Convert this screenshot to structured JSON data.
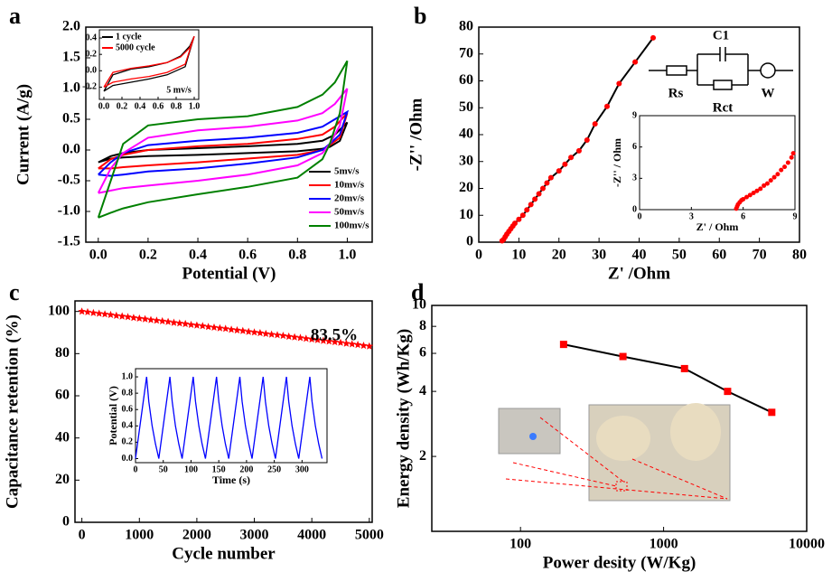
{
  "chart_data": [
    {
      "type": "line",
      "panel": "a",
      "xlabel": "Potential (V)",
      "ylabel": "Current (A/g)",
      "x": [
        0,
        0.05,
        0.1,
        0.2,
        0.4,
        0.6,
        0.8,
        0.9,
        0.95,
        1,
        1,
        0.97,
        0.93,
        0.9,
        0.8,
        0.6,
        0.4,
        0.2,
        0.1,
        0.05,
        0
      ],
      "series": [
        {
          "name": "5mv/s",
          "color": "#000000",
          "values": [
            -0.2,
            -0.1,
            -0.05,
            0,
            0.03,
            0.06,
            0.1,
            0.15,
            0.25,
            0.45,
            0.45,
            0.15,
            0.05,
            0.02,
            -0.02,
            -0.05,
            -0.08,
            -0.1,
            -0.12,
            -0.14,
            -0.2
          ]
        },
        {
          "name": "10mv/s",
          "color": "#ff0000",
          "values": [
            -0.3,
            -0.15,
            -0.08,
            0,
            0.06,
            0.1,
            0.18,
            0.25,
            0.38,
            0.6,
            0.6,
            0.2,
            0.08,
            0,
            -0.08,
            -0.14,
            -0.2,
            -0.25,
            -0.28,
            -0.3,
            -0.3
          ]
        },
        {
          "name": "20mv/s",
          "color": "#0000ff",
          "values": [
            -0.4,
            -0.2,
            -0.05,
            0.08,
            0.15,
            0.2,
            0.28,
            0.38,
            0.5,
            0.62,
            0.62,
            0.25,
            0.1,
            0,
            -0.12,
            -0.22,
            -0.3,
            -0.35,
            -0.4,
            -0.42,
            -0.4
          ]
        },
        {
          "name": "50mv/s",
          "color": "#ff00ff",
          "values": [
            -0.7,
            -0.3,
            -0.05,
            0.2,
            0.32,
            0.38,
            0.48,
            0.6,
            0.75,
            1,
            1,
            0.4,
            0.1,
            -0.05,
            -0.25,
            -0.4,
            -0.5,
            -0.58,
            -0.62,
            -0.66,
            -0.7
          ]
        },
        {
          "name": "100mv/s",
          "color": "#008000",
          "values": [
            -1.1,
            -0.5,
            0.1,
            0.4,
            0.5,
            0.55,
            0.7,
            0.9,
            1.1,
            1.45,
            1.45,
            0.6,
            0.1,
            -0.15,
            -0.45,
            -0.6,
            -0.72,
            -0.85,
            -0.95,
            -1.02,
            -1.1
          ]
        }
      ],
      "xlim": [
        -0.05,
        1.1
      ],
      "xticks": [
        {
          "value": 0,
          "label": "0.0"
        },
        0.2,
        0.4,
        0.6,
        0.8,
        {
          "value": 1,
          "label": "1.0"
        }
      ],
      "ylim": [
        -1.5,
        2
      ],
      "yticks": [
        -1.5,
        {
          "value": -1,
          "label": "-1.0"
        },
        -0.5,
        {
          "value": 0,
          "label": "0.0"
        },
        0.5,
        {
          "value": 1,
          "label": "1.0"
        },
        1.5,
        {
          "value": 2,
          "label": "2.0"
        }
      ],
      "legend": "lower right"
    },
    {
      "type": "line",
      "x": [
        0,
        0.1,
        0.3,
        0.5,
        0.7,
        0.85,
        0.95,
        1,
        0.9,
        0.7,
        0.5,
        0.3,
        0.1,
        0
      ],
      "series": [
        {
          "name": "1 cycle",
          "color": "#000000",
          "values": [
            -0.25,
            -0.05,
            0.02,
            0.05,
            0.1,
            0.18,
            0.3,
            0.42,
            0.05,
            -0.05,
            -0.1,
            -0.14,
            -0.18,
            -0.25
          ]
        },
        {
          "name": "5000 cycle",
          "color": "#ff0000",
          "values": [
            -0.2,
            -0.02,
            0.03,
            0.06,
            0.1,
            0.17,
            0.28,
            0.42,
            0.08,
            -0.02,
            -0.07,
            -0.1,
            -0.14,
            -0.2
          ]
        }
      ],
      "xlim": [
        -0.05,
        1.05
      ],
      "xticks": [
        {
          "value": 0,
          "label": "0.0"
        },
        0.2,
        0.4,
        0.6,
        0.8,
        {
          "value": 1,
          "label": "1.0"
        }
      ],
      "ylim": [
        -0.35,
        0.5
      ],
      "yticks": [
        -0.2,
        {
          "value": 0,
          "label": "0.0"
        },
        0.2,
        0.4
      ],
      "legend": "upper left",
      "annotations": [
        "5 mv/s"
      ]
    },
    {
      "type": "scatter",
      "panel": "b",
      "xlabel": "Z' /Ohm",
      "ylabel": "-Z'' /Ohm",
      "x": [
        5.8,
        6.2,
        6.6,
        7,
        7.5,
        8,
        8.5,
        9,
        10,
        11,
        12,
        13,
        14,
        15,
        16,
        17,
        18,
        20,
        21.5,
        23,
        25,
        27,
        29,
        32,
        35,
        39,
        43.5
      ],
      "series": [
        {
          "color": "#ff0000",
          "line_color": "#000000",
          "values": [
            0.5,
            1,
            2,
            3,
            4,
            5,
            6,
            7,
            8.5,
            10,
            12,
            14,
            16,
            18,
            20,
            22,
            24,
            26.5,
            29,
            31.5,
            34,
            38,
            44,
            50.5,
            59,
            67,
            76
          ]
        }
      ],
      "xlim": [
        0,
        80
      ],
      "xticks": [
        0,
        10,
        20,
        30,
        40,
        50,
        60,
        70,
        80
      ],
      "ylim": [
        0,
        80
      ],
      "yticks": [
        0,
        10,
        20,
        30,
        40,
        50,
        60,
        70,
        80
      ],
      "annotations": [
        "C1",
        "Rs",
        "W",
        "Rct"
      ]
    },
    {
      "type": "scatter",
      "xlabel": "Z' / Ohm",
      "ylabel": "-Z'' / Ohm",
      "x": [
        5.6,
        5.65,
        5.7,
        5.8,
        5.9,
        6,
        6.2,
        6.4,
        6.6,
        6.8,
        7,
        7.2,
        7.4,
        7.6,
        7.8,
        8,
        8.2,
        8.4,
        8.6,
        8.8,
        8.9
      ],
      "series": [
        {
          "color": "#ff0000",
          "values": [
            0.1,
            0.3,
            0.5,
            0.7,
            0.9,
            1,
            1.2,
            1.4,
            1.6,
            1.8,
            2,
            2.3,
            2.5,
            2.8,
            3.1,
            3.4,
            3.8,
            4.1,
            4.5,
            5,
            5.4
          ]
        }
      ],
      "xlim": [
        0,
        9
      ],
      "xticks": [
        0,
        3,
        6,
        9
      ],
      "ylim": [
        0,
        9
      ],
      "yticks": [
        0,
        3,
        6,
        9
      ]
    },
    {
      "type": "scatter",
      "panel": "c",
      "xlabel": "Cycle number",
      "ylabel": "Capacitance retention (%)",
      "marker": "star",
      "x": [
        0,
        100,
        200,
        300,
        400,
        500,
        600,
        700,
        800,
        900,
        1000,
        1100,
        1200,
        1300,
        1400,
        1500,
        1600,
        1700,
        1800,
        1900,
        2000,
        2100,
        2200,
        2300,
        2400,
        2500,
        2600,
        2700,
        2800,
        2900,
        3000,
        3100,
        3200,
        3300,
        3400,
        3500,
        3600,
        3700,
        3800,
        3900,
        4000,
        4100,
        4200,
        4300,
        4400,
        4500,
        4600,
        4700,
        4800,
        4900,
        5000
      ],
      "series": [
        {
          "color": "#ff0000",
          "values": [
            100,
            99.7,
            99.3,
            99,
            98.7,
            98.4,
            98,
            97.7,
            97.4,
            97,
            96.7,
            96.4,
            96,
            95.7,
            95.4,
            95.1,
            94.7,
            94.4,
            94.1,
            93.7,
            93.4,
            93.1,
            92.7,
            92.4,
            92.1,
            91.8,
            91.4,
            91.1,
            90.8,
            90.4,
            90.1,
            89.8,
            89.4,
            89.1,
            88.8,
            88.5,
            88.1,
            87.8,
            87.5,
            87.1,
            86.8,
            86.5,
            86.1,
            85.8,
            85.5,
            85.2,
            84.8,
            84.5,
            84.2,
            83.8,
            83.5
          ]
        }
      ],
      "xlim": [
        -120,
        5050
      ],
      "xticks": [
        0,
        1000,
        2000,
        3000,
        4000,
        5000
      ],
      "ylim": [
        0,
        105
      ],
      "yticks": [
        0,
        20,
        40,
        60,
        80,
        100
      ],
      "annotations": [
        "83.5%"
      ],
      "annotation_color": "#ff0000"
    },
    {
      "type": "line",
      "xlabel": "Time (s)",
      "ylabel": "Potential (V)",
      "x": [
        0,
        20,
        24,
        30,
        36,
        42,
        62,
        66,
        72,
        78,
        84,
        104,
        108,
        114,
        120,
        126,
        146,
        150,
        156,
        162,
        168,
        188,
        192,
        198,
        204,
        210,
        230,
        234,
        240,
        246,
        252,
        272,
        276,
        282,
        288,
        294,
        314,
        318,
        324,
        330,
        336
      ],
      "series": [
        {
          "color": "#0000ff",
          "values": [
            0,
            1,
            0.7,
            0.4,
            0.18,
            0,
            1,
            0.7,
            0.4,
            0.18,
            0,
            1,
            0.7,
            0.4,
            0.18,
            0,
            1,
            0.7,
            0.4,
            0.18,
            0,
            1,
            0.7,
            0.4,
            0.18,
            0,
            1,
            0.7,
            0.4,
            0.18,
            0,
            1,
            0.7,
            0.4,
            0.18,
            0,
            1,
            0.7,
            0.4,
            0.18,
            0
          ]
        }
      ],
      "xlim": [
        0,
        345
      ],
      "xticks": [
        0,
        50,
        100,
        150,
        200,
        250,
        300
      ],
      "ylim": [
        -0.05,
        1.1
      ],
      "yticks": [
        {
          "value": 0,
          "label": "0.0"
        },
        0.2,
        0.4,
        0.6,
        0.8,
        {
          "value": 1,
          "label": "1.0"
        }
      ]
    },
    {
      "type": "line",
      "panel": "d",
      "xlabel": "Power desity (W/Kg)",
      "ylabel": "Energy density (Wh/Kg)",
      "xlog": true,
      "ylog": true,
      "x": [
        200,
        520,
        1400,
        2800,
        5700
      ],
      "series": [
        {
          "color": "#000000",
          "marker": "square",
          "marker_color": "#ff0000",
          "values": [
            6.6,
            5.8,
            5.1,
            4,
            3.2
          ]
        }
      ],
      "xlim": [
        24,
        10000
      ],
      "xticks": [
        100,
        1000,
        10000
      ],
      "ylim": [
        0.9,
        10
      ],
      "yticks": [
        2,
        4,
        6,
        8,
        10
      ]
    }
  ]
}
